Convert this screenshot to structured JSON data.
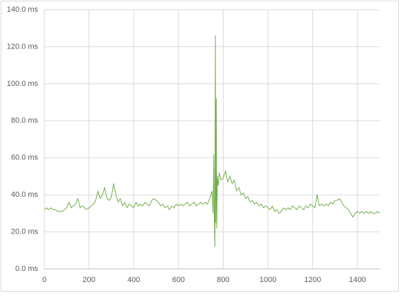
{
  "chart_data": {
    "type": "line",
    "color": "#70ad47",
    "grid": true,
    "xlim": [
      0,
      1500
    ],
    "xticks": [
      0,
      200,
      400,
      600,
      800,
      1000,
      1200,
      1400
    ],
    "ylim": [
      0,
      140
    ],
    "yticks": [
      {
        "value": 0,
        "label": "0.0 ms"
      },
      {
        "value": 20,
        "label": "20.0 ms"
      },
      {
        "value": 40,
        "label": "40.0 ms"
      },
      {
        "value": 60,
        "label": "60.0 ms"
      },
      {
        "value": 80,
        "label": "80.0 ms"
      },
      {
        "value": 100,
        "label": "100.0 ms"
      },
      {
        "value": 120,
        "label": "120.0 ms"
      },
      {
        "value": 140,
        "label": "140.0 ms"
      }
    ],
    "x": [
      0,
      10,
      20,
      30,
      40,
      50,
      60,
      70,
      80,
      90,
      100,
      110,
      120,
      130,
      140,
      150,
      160,
      170,
      180,
      190,
      200,
      210,
      220,
      230,
      240,
      250,
      260,
      270,
      280,
      290,
      300,
      310,
      320,
      330,
      340,
      350,
      360,
      370,
      380,
      390,
      400,
      410,
      420,
      430,
      440,
      450,
      460,
      470,
      480,
      490,
      500,
      510,
      520,
      530,
      540,
      550,
      560,
      570,
      580,
      590,
      600,
      610,
      620,
      630,
      640,
      650,
      660,
      670,
      680,
      690,
      700,
      710,
      720,
      730,
      740,
      750,
      755,
      758,
      760,
      763,
      765,
      767,
      769,
      771,
      774,
      778,
      782,
      790,
      800,
      810,
      820,
      830,
      840,
      850,
      860,
      870,
      880,
      890,
      900,
      910,
      920,
      930,
      940,
      950,
      960,
      970,
      980,
      990,
      1000,
      1010,
      1020,
      1030,
      1040,
      1050,
      1060,
      1070,
      1080,
      1090,
      1100,
      1110,
      1120,
      1130,
      1140,
      1150,
      1160,
      1170,
      1180,
      1190,
      1200,
      1210,
      1220,
      1230,
      1240,
      1250,
      1260,
      1270,
      1280,
      1290,
      1300,
      1310,
      1320,
      1330,
      1340,
      1350,
      1360,
      1370,
      1380,
      1390,
      1400,
      1410,
      1420,
      1430,
      1440,
      1450,
      1460,
      1470,
      1480,
      1490,
      1500
    ],
    "values": [
      32,
      33,
      32,
      33,
      32,
      32,
      31,
      31,
      31,
      32,
      33,
      36,
      33,
      34,
      35,
      38,
      33,
      34,
      33,
      32,
      33,
      34,
      35,
      37,
      42,
      38,
      40,
      44,
      38,
      37,
      39,
      46,
      40,
      36,
      38,
      34,
      36,
      33,
      35,
      34,
      33,
      36,
      34,
      35,
      34,
      36,
      35,
      34,
      37,
      38,
      37,
      36,
      34,
      35,
      33,
      34,
      32,
      34,
      33,
      35,
      34,
      35,
      34,
      35,
      36,
      34,
      35,
      36,
      34,
      35,
      36,
      35,
      36,
      35,
      38,
      42,
      30,
      62,
      30,
      12,
      126,
      25,
      92,
      22,
      50,
      45,
      52,
      48,
      49,
      53,
      47,
      50,
      46,
      48,
      42,
      44,
      40,
      41,
      38,
      39,
      36,
      37,
      35,
      36,
      34,
      35,
      33,
      34,
      33,
      32,
      34,
      31,
      32,
      30,
      31,
      33,
      32,
      33,
      32,
      34,
      33,
      32,
      34,
      33,
      32,
      34,
      33,
      35,
      34,
      33,
      40,
      34,
      35,
      34,
      35,
      34,
      36,
      35,
      37,
      37,
      38,
      36,
      34,
      33,
      32,
      30,
      28,
      30,
      31,
      30,
      31,
      30,
      31,
      30,
      31,
      30,
      30,
      31,
      30
    ]
  }
}
